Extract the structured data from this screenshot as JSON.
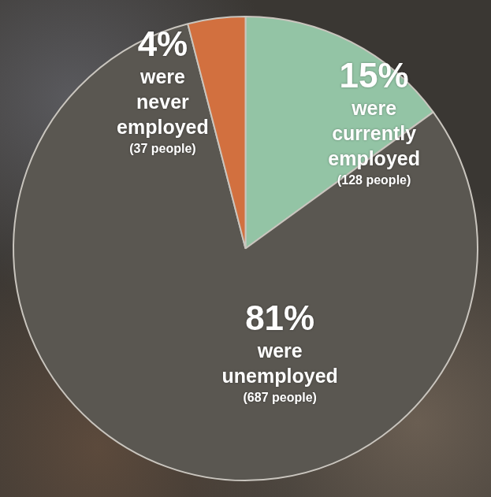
{
  "chart_data": {
    "type": "pie",
    "categories": [
      "were currently employed",
      "were unemployed",
      "were never employed"
    ],
    "values": [
      15,
      81,
      4
    ],
    "value_labels": [
      "15%",
      "81%",
      "4%"
    ],
    "count_labels": [
      "(128 people)",
      "(687 people)",
      "(37 people)"
    ],
    "colors": [
      "#93c4a5",
      "#5a5751",
      "#d2703f"
    ],
    "data_labels": true
  }
}
